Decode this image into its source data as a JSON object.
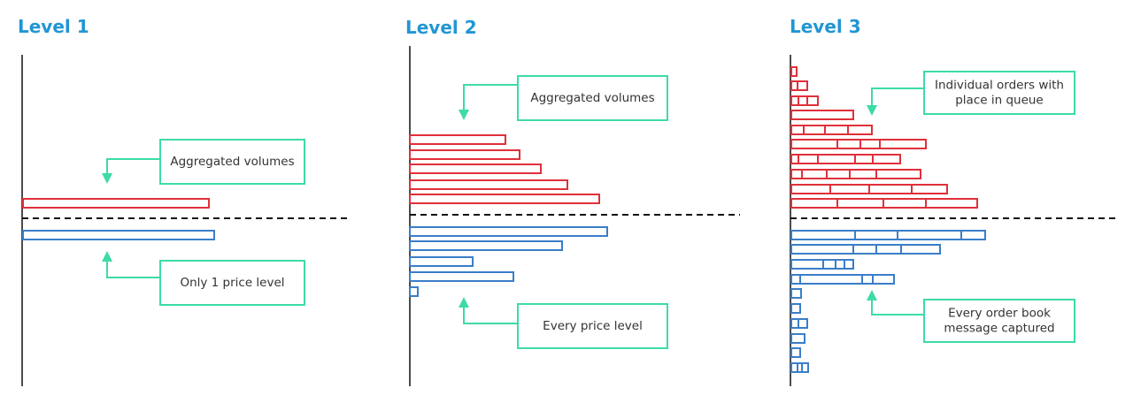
{
  "panels": [
    {
      "title": "Level 1",
      "callouts": [
        {
          "lines": [
            "Aggregated volumes"
          ]
        },
        {
          "lines": [
            "Only 1 price level"
          ]
        }
      ]
    },
    {
      "title": "Level 2",
      "callouts": [
        {
          "lines": [
            "Aggregated volumes"
          ]
        },
        {
          "lines": [
            "Every price level"
          ]
        }
      ]
    },
    {
      "title": "Level 3",
      "callouts": [
        {
          "lines": [
            "Individual orders with",
            "place in queue"
          ]
        },
        {
          "lines": [
            "Every order book",
            "message captured"
          ]
        }
      ]
    }
  ]
}
